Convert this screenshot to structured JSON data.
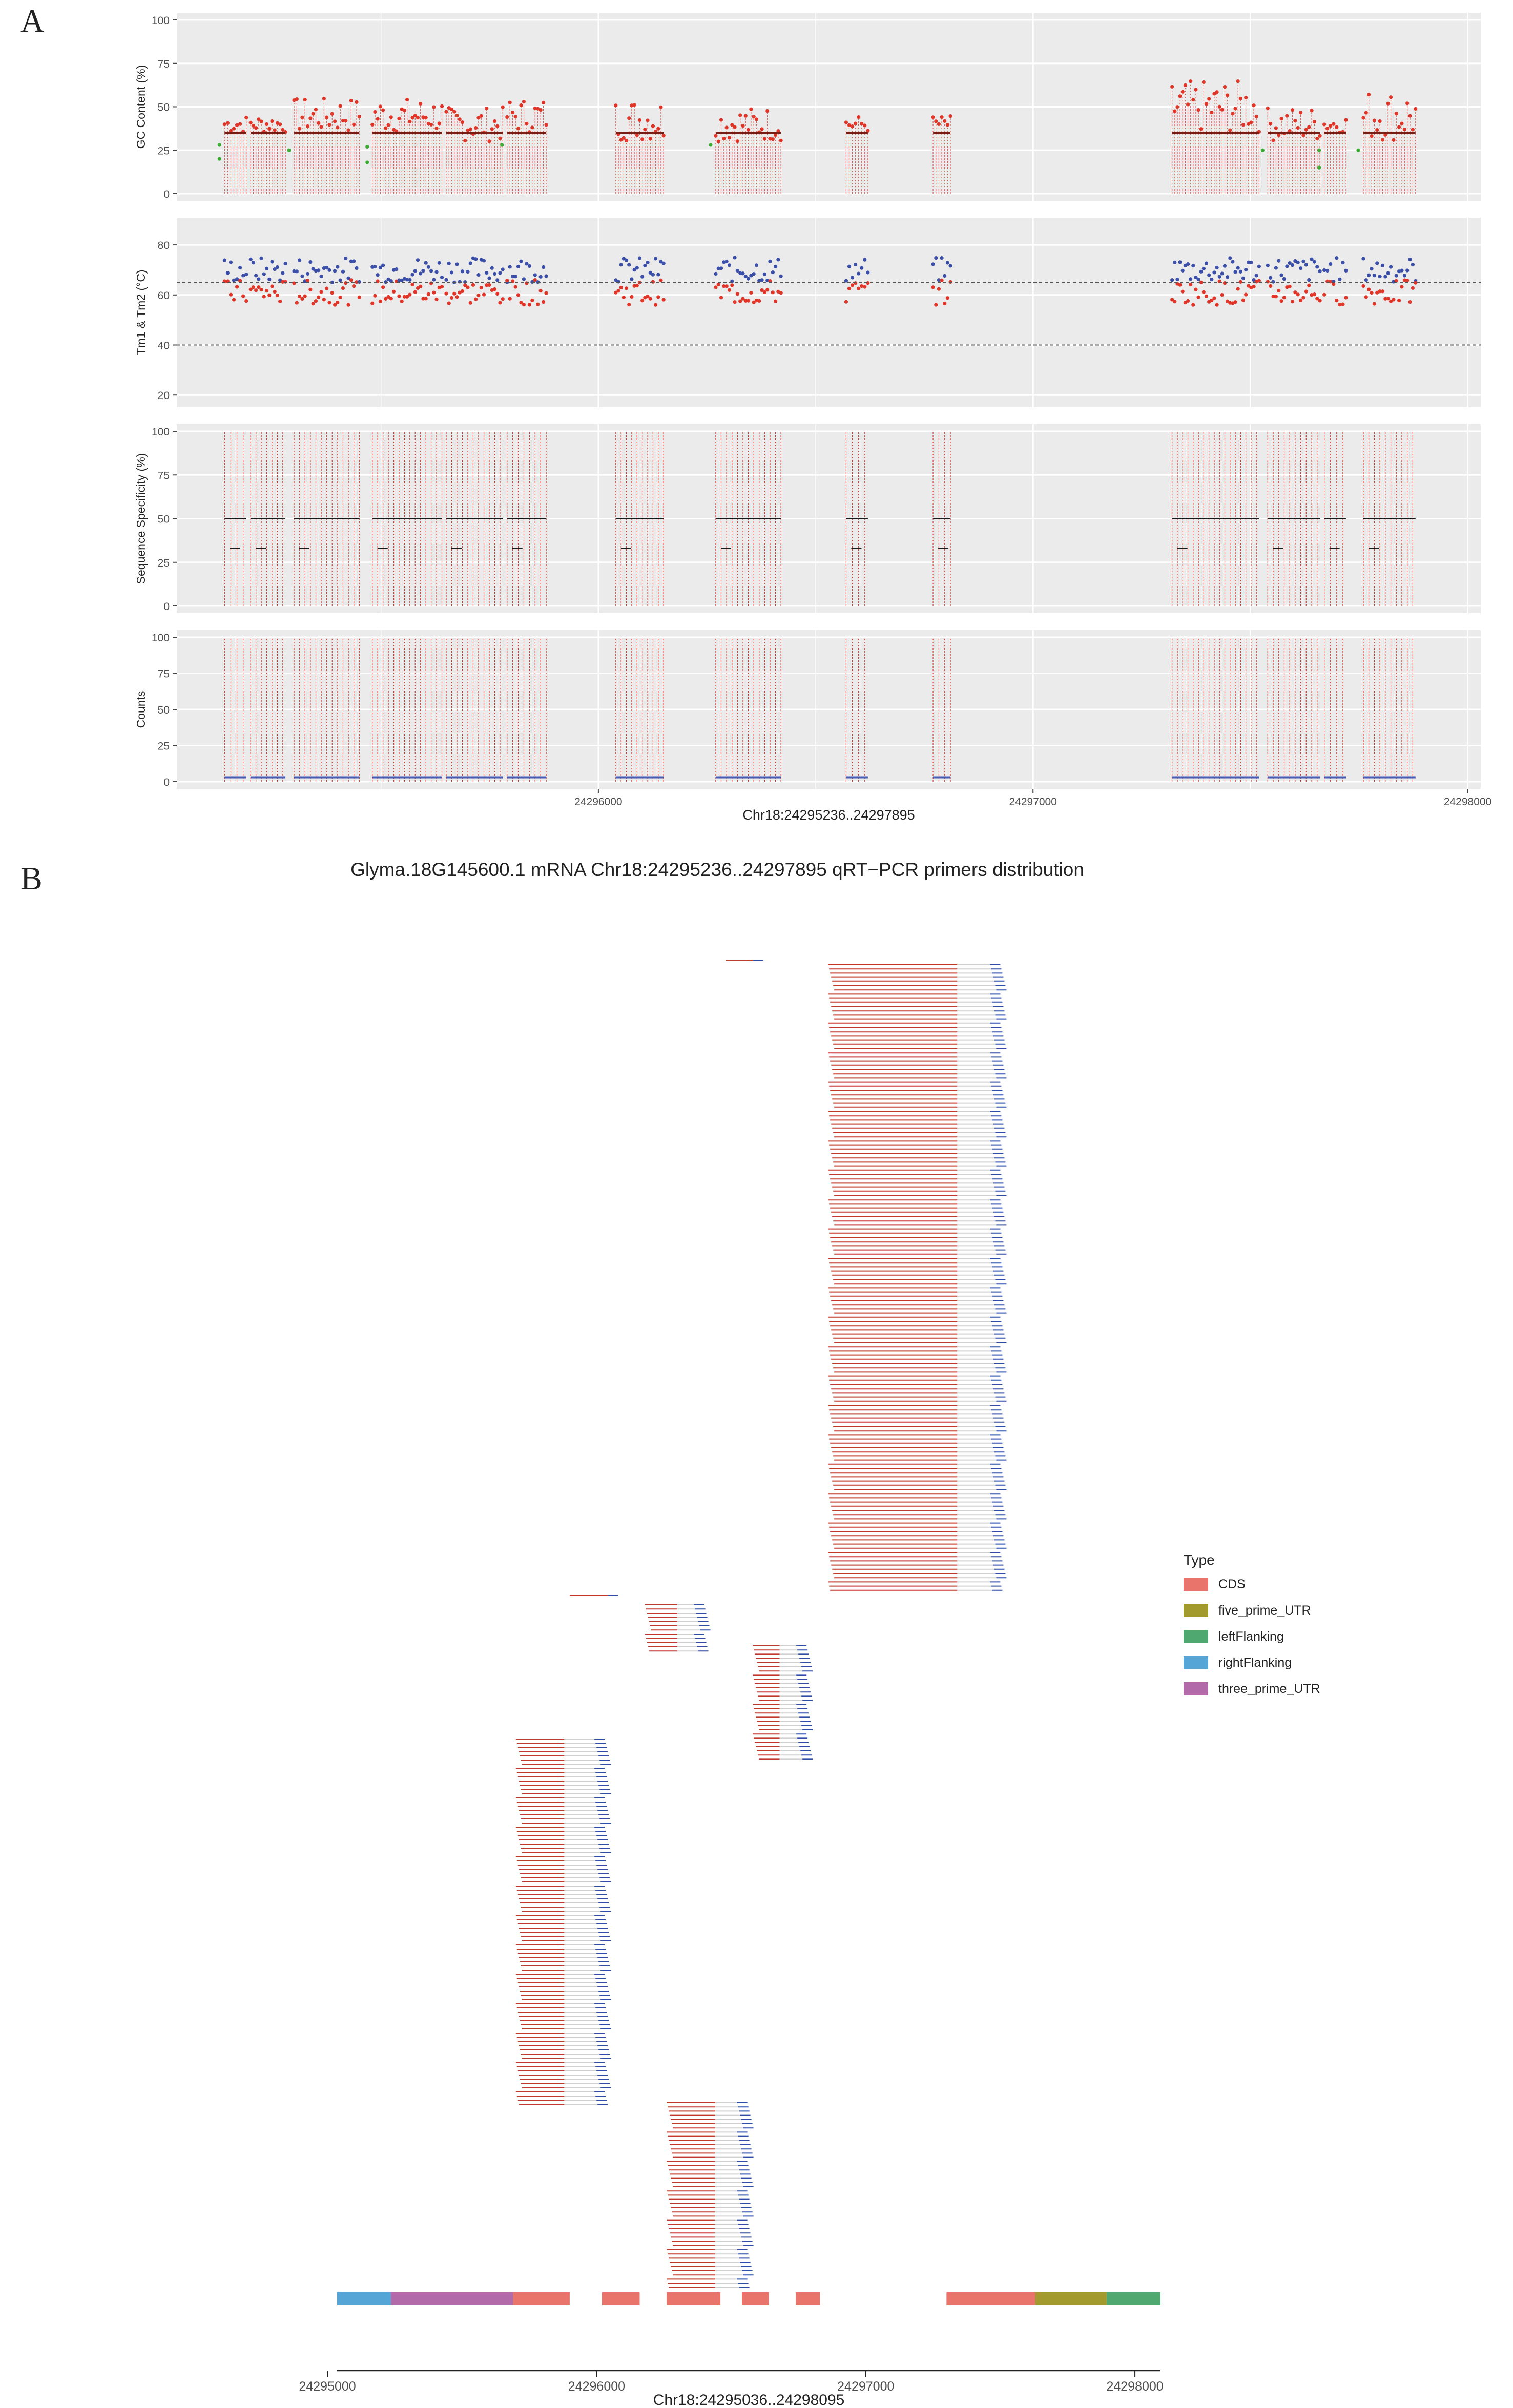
{
  "panel_labels": {
    "a": "A",
    "b": "B"
  },
  "colors": {
    "panel_bg": "#EBEBEB",
    "grid_major": "#FFFFFF",
    "gc_red": "#E0362A",
    "gc_green": "#3DAA35",
    "gc_dark": "#7A1E14",
    "tm_blue": "#3B4FA8",
    "tm_red": "#E0362A",
    "spec_black": "#1A1A1A",
    "count_blue": "#4A5BB4",
    "cds": "#E8746B",
    "five_prime_UTR": "#A39A2E",
    "leftFlanking": "#4FA870",
    "rightFlanking": "#55A6D6",
    "three_prime_UTR": "#B26BA8",
    "primer_red": "#C0392B",
    "primer_blue": "#2E4CA8",
    "bar_gray": "#D0D0D0"
  },
  "chart_data": [
    {
      "type": "scatter",
      "title": "",
      "xlabel": "Chr18:24295236..24297895",
      "ylabel": "GC Content (%)",
      "ylim": [
        0,
        100
      ],
      "yticks": [
        "0",
        "25",
        "50",
        "75",
        "100"
      ],
      "xlim": [
        24295030,
        24298030
      ],
      "xticks": [
        "24296000",
        "24297000",
        "24298000"
      ],
      "note_series": [
        "red dots = GC in range",
        "green dots = GC low"
      ],
      "groups": [
        {
          "x": [
            24295140,
            24295190
          ],
          "gc": [
            35,
            45
          ],
          "low": [
            20,
            28
          ]
        },
        {
          "x": [
            24295200,
            24295280
          ],
          "gc": [
            35,
            45
          ],
          "low": []
        },
        {
          "x": [
            24295300,
            24295450
          ],
          "gc": [
            35,
            55
          ],
          "low": [
            25
          ]
        },
        {
          "x": [
            24295480,
            24295640
          ],
          "gc": [
            35,
            55
          ],
          "low": [
            18,
            27
          ]
        },
        {
          "x": [
            24295650,
            24295780
          ],
          "gc": [
            30,
            50
          ],
          "low": []
        },
        {
          "x": [
            24295790,
            24295880
          ],
          "gc": [
            35,
            55
          ],
          "low": [
            28
          ]
        },
        {
          "x": [
            24296040,
            24296150
          ],
          "gc": [
            30,
            55
          ],
          "low": []
        },
        {
          "x": [
            24296270,
            24296420
          ],
          "gc": [
            30,
            50
          ],
          "low": [
            28
          ]
        },
        {
          "x": [
            24296570,
            24296620
          ],
          "gc": [
            35,
            45
          ],
          "low": []
        },
        {
          "x": [
            24296770,
            24296810
          ],
          "gc": [
            35,
            45
          ],
          "low": []
        },
        {
          "x": [
            24297320,
            24297520
          ],
          "gc": [
            35,
            65
          ],
          "low": []
        },
        {
          "x": [
            24297540,
            24297660
          ],
          "gc": [
            30,
            50
          ],
          "low": [
            25
          ]
        },
        {
          "x": [
            24297670,
            24297720
          ],
          "gc": [
            35,
            45
          ],
          "low": [
            15,
            25
          ]
        },
        {
          "x": [
            24297760,
            24297880
          ],
          "gc": [
            30,
            60
          ],
          "low": [
            25
          ]
        }
      ]
    },
    {
      "type": "scatter",
      "ylabel": "Tm1 & Tm2 (°C)",
      "ylim": [
        18,
        88
      ],
      "yticks": [
        "20",
        "40",
        "60",
        "80"
      ],
      "hlines": [
        65,
        40
      ],
      "series": [
        {
          "name": "Tm1",
          "color": "blue",
          "range": [
            60,
            78
          ]
        },
        {
          "name": "Tm2",
          "color": "red",
          "range": [
            50,
            70
          ]
        }
      ]
    },
    {
      "type": "scatter",
      "ylabel": "Sequence Specificity (%)",
      "ylim": [
        0,
        100
      ],
      "yticks": [
        "0",
        "25",
        "50",
        "75",
        "100"
      ],
      "levels": [
        100,
        50,
        33,
        25,
        20,
        10,
        5
      ]
    },
    {
      "type": "scatter",
      "ylabel": "Counts",
      "ylim": [
        0,
        100
      ],
      "yticks": [
        "0",
        "25",
        "50",
        "75",
        "100"
      ],
      "levels": [
        100,
        30,
        20,
        15,
        10,
        5,
        2
      ]
    },
    {
      "type": "bar",
      "title": "Glyma.18G145600.1 mRNA Chr18:24295236..24297895 qRT−PCR primers distribution",
      "xlabel": "Chr18:24295036..24298095",
      "xlim": [
        24295036,
        24298095
      ],
      "xticks": [
        "24295000",
        "24296000",
        "24297000",
        "24298000"
      ],
      "legend": {
        "title": "Type",
        "position": "right",
        "items": [
          "CDS",
          "five_prime_UTR",
          "leftFlanking",
          "rightFlanking",
          "three_prime_UTR"
        ]
      },
      "features": [
        {
          "type": "rightFlanking",
          "start": 24295036,
          "end": 24295236
        },
        {
          "type": "three_prime_UTR",
          "start": 24295236,
          "end": 24295690
        },
        {
          "type": "CDS",
          "start": 24295690,
          "end": 24295900
        },
        {
          "type": "CDS",
          "start": 24296020,
          "end": 24296160
        },
        {
          "type": "CDS",
          "start": 24296260,
          "end": 24296460
        },
        {
          "type": "CDS",
          "start": 24296540,
          "end": 24296640
        },
        {
          "type": "CDS",
          "start": 24296740,
          "end": 24296830
        },
        {
          "type": "CDS",
          "start": 24297300,
          "end": 24297630
        },
        {
          "type": "five_prime_UTR",
          "start": 24297630,
          "end": 24297895
        },
        {
          "type": "leftFlanking",
          "start": 24297895,
          "end": 24298095
        }
      ],
      "primer_groups": [
        {
          "left_start": 24296480,
          "left_end": 24296590,
          "right_end": 24296620,
          "n": 1
        },
        {
          "left_start": 24296860,
          "left_end": 24297340,
          "right_end": 24297500,
          "n": 150
        },
        {
          "left_start": 24295900,
          "left_end": 24296050,
          "right_end": 24296080,
          "n": 1
        },
        {
          "left_start": 24296180,
          "left_end": 24296300,
          "right_end": 24296400,
          "n": 12
        },
        {
          "left_start": 24296580,
          "left_end": 24296680,
          "right_end": 24296780,
          "n": 28
        },
        {
          "left_start": 24295700,
          "left_end": 24295880,
          "right_end": 24296030,
          "n": 88
        },
        {
          "left_start": 24296260,
          "left_end": 24296440,
          "right_end": 24296560,
          "n": 45
        }
      ]
    }
  ]
}
